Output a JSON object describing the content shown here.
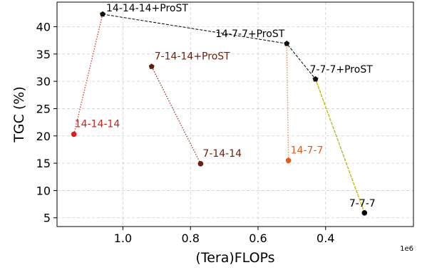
{
  "chart_data": {
    "type": "scatter",
    "title": "",
    "xlabel": "(Tera)FLOPs",
    "ylabel": "TGC (%)",
    "x_offset_label": "1e6",
    "x_inverted": true,
    "xlim": [
      1.195,
      0.14
    ],
    "ylim": [
      3.4,
      44.5
    ],
    "xticks": [
      1.0,
      0.8,
      0.6,
      0.4
    ],
    "xtick_labels": [
      "1.0",
      "0.8",
      "0.6",
      "0.4"
    ],
    "yticks": [
      5,
      10,
      15,
      20,
      25,
      30,
      35,
      40
    ],
    "ytick_labels": [
      "5",
      "10",
      "15",
      "20",
      "25",
      "30",
      "35",
      "40"
    ],
    "grid": true,
    "points": [
      {
        "label": "14-14-14+ProST",
        "x": 1.06,
        "y": 42.3,
        "color": "#111111",
        "label_color": "#000000",
        "marker": "pentagon"
      },
      {
        "label": "14-7-7+ProST",
        "x": 0.515,
        "y": 36.9,
        "color": "#111111",
        "label_color": "#000000",
        "marker": "pentagon"
      },
      {
        "label": "7-7-7+ProST",
        "x": 0.43,
        "y": 30.4,
        "color": "#111111",
        "label_color": "#000000",
        "marker": "pentagon"
      },
      {
        "label": "7-7-7",
        "x": 0.285,
        "y": 5.9,
        "color": "#000000",
        "label_color": "#000000",
        "marker": "circle"
      },
      {
        "label": "7-14-14+ProST",
        "x": 0.915,
        "y": 32.7,
        "color": "#5a1a0c",
        "label_color": "#6b1f0e",
        "marker": "pentagon"
      },
      {
        "label": "7-14-14",
        "x": 0.77,
        "y": 14.9,
        "color": "#6b1f0e",
        "label_color": "#6b1f0e",
        "marker": "circle"
      },
      {
        "label": "14-14-14",
        "x": 1.145,
        "y": 20.3,
        "color": "#d81d1d",
        "label_color": "#d81d1d",
        "marker": "circle"
      },
      {
        "label": "14-7-7",
        "x": 0.51,
        "y": 15.5,
        "color": "#e35a1f",
        "label_color": "#e35a1f",
        "marker": "circle"
      }
    ],
    "prost_frontier": {
      "points": [
        "14-14-14+ProST",
        "14-7-7+ProST",
        "7-7-7+ProST",
        "7-7-7"
      ],
      "style": "dashed",
      "color": "#000000"
    },
    "links": [
      {
        "from": "14-14-14",
        "to": "14-14-14+ProST",
        "color": "#e0403a",
        "style": "dotted"
      },
      {
        "from": "7-14-14",
        "to": "7-14-14+ProST",
        "color": "#9b3a2a",
        "style": "dotted"
      },
      {
        "from": "14-7-7",
        "to": "14-7-7+ProST",
        "color": "#ee8a5a",
        "style": "dotted"
      },
      {
        "from": "7-7-7",
        "to": "7-7-7+ProST",
        "color": "#c9c800",
        "style": "dashed"
      }
    ]
  }
}
